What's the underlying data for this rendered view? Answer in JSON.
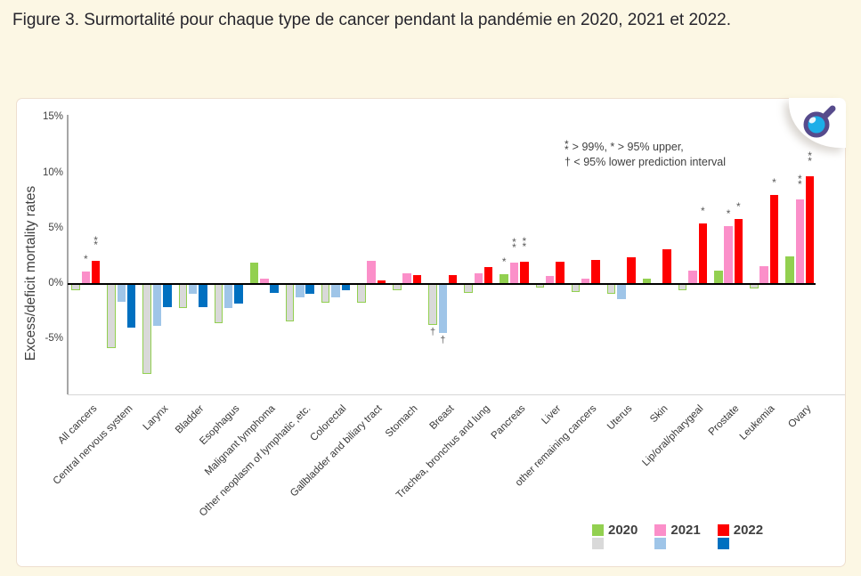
{
  "figure": {
    "title": "Figure 3. Surmortalité pour chaque type de cancer pendant la pandémie en 2020, 2021 et 2022."
  },
  "panel": {
    "zoom_button_icon": "magnifier-icon"
  },
  "chart_data": {
    "type": "bar",
    "title": "",
    "xlabel": "",
    "ylabel": "Excess/deficit mortality rates",
    "ylim": [
      -10,
      15.3
    ],
    "grid": false,
    "legend_position": "bottom",
    "yticks": [
      {
        "v": 15,
        "label": "15%"
      },
      {
        "v": 10,
        "label": "10%"
      },
      {
        "v": 5,
        "label": "5%"
      },
      {
        "v": 0,
        "label": "0%"
      },
      {
        "v": -5,
        "label": "-5%"
      }
    ],
    "categories": [
      "All cancers",
      "Central nervous system",
      "Larynx",
      "Bladder",
      "Esophagus",
      "Malignant lymphoma",
      "Other neoplasm of lymphatic ,etc.",
      "Colorectal",
      "Gallbladder and biliary tract",
      "Stomach",
      "Breast",
      "Trachea, bronchus and lung",
      "Pancreas",
      "Liver",
      "other remaining cancers",
      "Uterus",
      "Skin",
      "Lip/oral/pharygeal",
      "Prostate",
      "Leukemia",
      "Ovary"
    ],
    "series": [
      {
        "name": "2020",
        "pos_color": "#92d050",
        "neg_color": "#d9d9d9",
        "neg_border": "#92d050",
        "values": [
          -0.6,
          -5.8,
          -8.1,
          -2.2,
          -3.5,
          1.9,
          -3.4,
          -1.7,
          -1.7,
          -0.6,
          -3.7,
          -0.8,
          0.9,
          -0.3,
          -0.7,
          -0.9,
          0.5,
          -0.6,
          1.2,
          -0.4,
          2.5
        ],
        "markers": [
          "",
          "",
          "",
          "",
          "",
          "",
          "",
          "",
          "",
          "",
          "†",
          "",
          "*",
          "",
          "",
          "",
          "",
          "",
          "",
          "",
          ""
        ]
      },
      {
        "name": "2021",
        "pos_color": "#fb8fc9",
        "neg_color": "#9fc5e8",
        "neg_border": "",
        "values": [
          1.1,
          -1.6,
          -3.8,
          -0.9,
          -2.2,
          0.5,
          -1.2,
          -1.2,
          2.1,
          1.0,
          -4.4,
          1.0,
          1.9,
          0.7,
          0.5,
          -1.4,
          0.0,
          1.2,
          5.2,
          1.6,
          7.6
        ],
        "markers": [
          "*",
          "",
          "",
          "",
          "",
          "",
          "",
          "",
          "",
          "",
          "†",
          "",
          "**",
          "",
          "",
          "",
          "",
          "",
          "*",
          "",
          "**"
        ]
      },
      {
        "name": "2022",
        "pos_color": "#fe0000",
        "neg_color": "#0070c0",
        "neg_border": "",
        "values": [
          2.1,
          -3.9,
          -2.1,
          -2.1,
          -1.8,
          -0.8,
          -0.9,
          -0.6,
          0.3,
          0.8,
          0.8,
          1.5,
          2.0,
          2.0,
          2.2,
          2.4,
          3.1,
          5.5,
          5.9,
          8.0,
          9.7
        ],
        "markers": [
          "**",
          "",
          "",
          "",
          "",
          "",
          "",
          "",
          "",
          "",
          "",
          "",
          "**",
          "",
          "",
          "",
          "",
          "*",
          "*",
          "*",
          "**"
        ]
      }
    ],
    "note": {
      "symbol_99": "**",
      "line1": "> 99%,  * > 95% upper,",
      "line2": "† < 95% lower prediction interval"
    },
    "legend": [
      "2020",
      "2021",
      "2022"
    ]
  }
}
